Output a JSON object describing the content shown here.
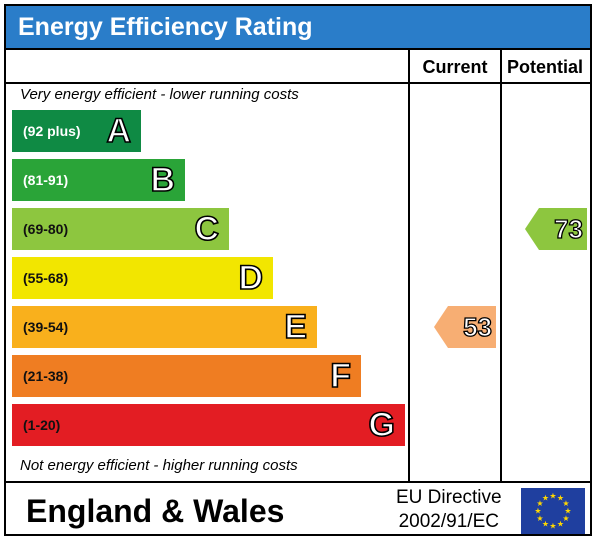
{
  "title": "Energy Efficiency Rating",
  "columns": {
    "current": "Current",
    "potential": "Potential"
  },
  "notes": {
    "top": "Very energy efficient - lower running costs",
    "bottom": "Not energy efficient - higher running costs"
  },
  "footer": {
    "country": "England & Wales",
    "directive_line1": "EU Directive",
    "directive_line2": "2002/91/EC",
    "flag_icon": "eu-flag-icon"
  },
  "chart_data": {
    "type": "bar",
    "title": "Energy Efficiency Rating",
    "bands": [
      {
        "letter": "A",
        "range": "(92 plus)",
        "min": 92,
        "max": 100,
        "color": "#0f8a44"
      },
      {
        "letter": "B",
        "range": "(81-91)",
        "min": 81,
        "max": 91,
        "color": "#2aa438"
      },
      {
        "letter": "C",
        "range": "(69-80)",
        "min": 69,
        "max": 80,
        "color": "#8dc63f"
      },
      {
        "letter": "D",
        "range": "(55-68)",
        "min": 55,
        "max": 68,
        "color": "#f2e600"
      },
      {
        "letter": "E",
        "range": "(39-54)",
        "min": 39,
        "max": 54,
        "color": "#f9b01c"
      },
      {
        "letter": "F",
        "range": "(21-38)",
        "min": 21,
        "max": 38,
        "color": "#ef7d22"
      },
      {
        "letter": "G",
        "range": "(1-20)",
        "min": 1,
        "max": 20,
        "color": "#e31d23"
      }
    ],
    "current": {
      "value": 53,
      "band": "E",
      "color": "#f7ae73"
    },
    "potential": {
      "value": 73,
      "band": "C",
      "color": "#8dc63f"
    }
  }
}
